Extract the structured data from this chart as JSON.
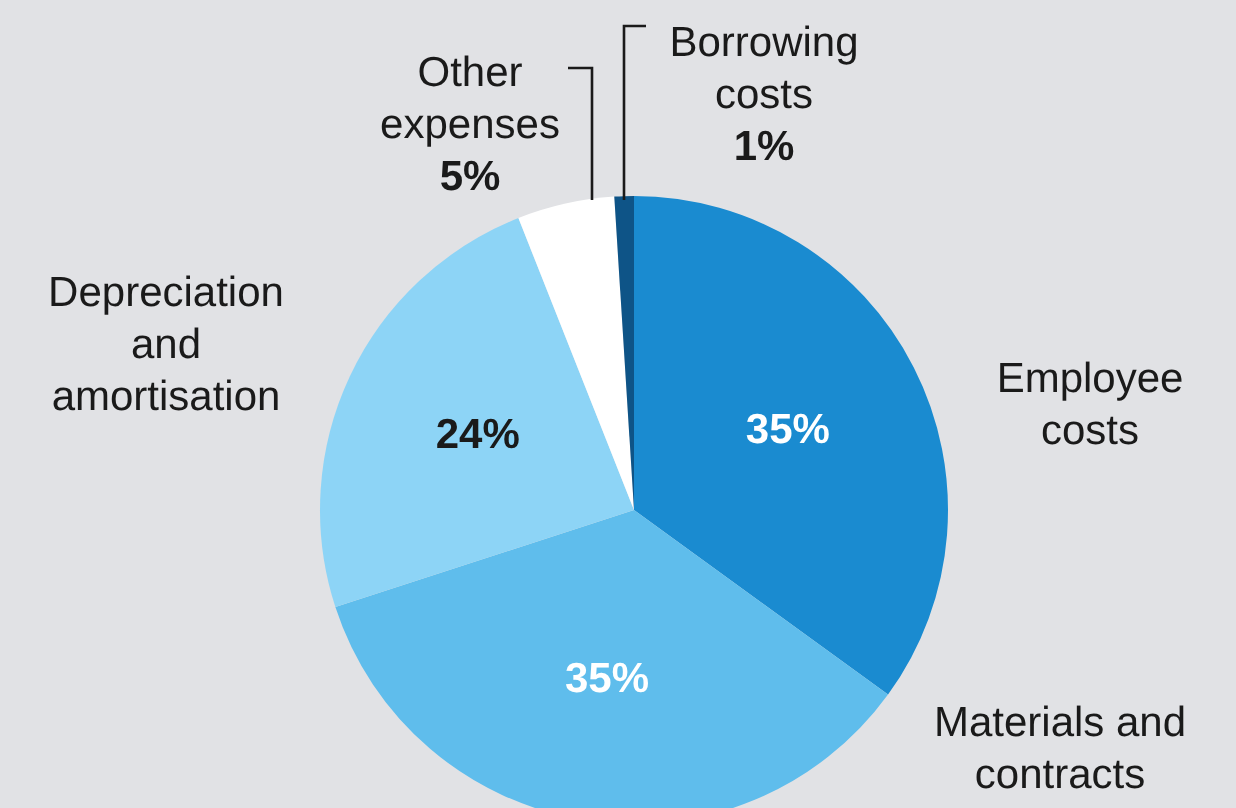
{
  "chart_data": {
    "type": "pie",
    "categories": [
      "Employee costs",
      "Materials and contracts",
      "Depreciation and amortisation",
      "Other expenses",
      "Borrowing costs"
    ],
    "values": [
      35,
      35,
      24,
      5,
      1
    ],
    "colors": [
      "#1a8bd0",
      "#5fbdec",
      "#8dd4f6",
      "#ffffff",
      "#0e5487"
    ],
    "value_labels": [
      "35%",
      "35%",
      "24%",
      "5%",
      "1%"
    ]
  }
}
